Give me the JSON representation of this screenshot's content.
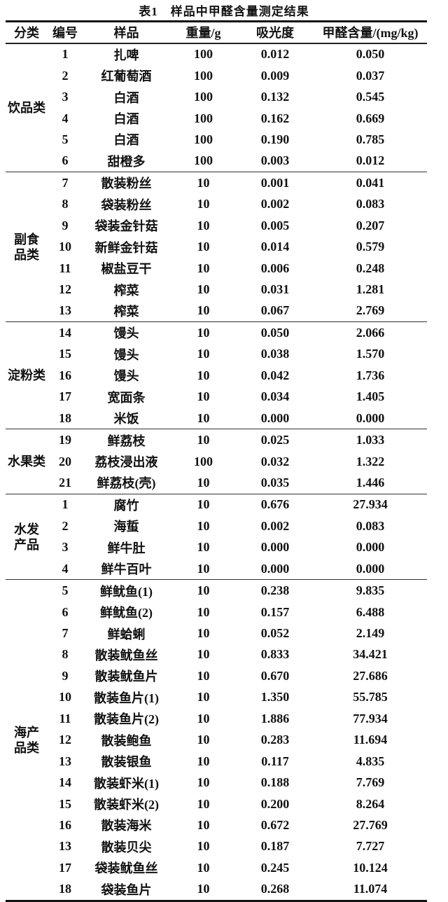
{
  "title": "表1　样品中甲醛含量测定结果",
  "headers": [
    "分类",
    "编号",
    "样品",
    "重量/g",
    "吸光度",
    "甲醛含量/(mg/kg)"
  ],
  "groups": [
    {
      "category": "饮品类",
      "rows": [
        [
          "1",
          "扎啤",
          "100",
          "0.012",
          "0.050"
        ],
        [
          "2",
          "红葡萄酒",
          "100",
          "0.009",
          "0.037"
        ],
        [
          "3",
          "白酒",
          "100",
          "0.132",
          "0.545"
        ],
        [
          "4",
          "白酒",
          "100",
          "0.162",
          "0.669"
        ],
        [
          "5",
          "白酒",
          "100",
          "0.190",
          "0.785"
        ],
        [
          "6",
          "甜橙多",
          "100",
          "0.003",
          "0.012"
        ]
      ]
    },
    {
      "category": "副食\n品类",
      "rows": [
        [
          "7",
          "散装粉丝",
          "10",
          "0.001",
          "0.041"
        ],
        [
          "8",
          "袋装粉丝",
          "10",
          "0.002",
          "0.083"
        ],
        [
          "9",
          "袋装金针菇",
          "10",
          "0.005",
          "0.207"
        ],
        [
          "10",
          "新鲜金针菇",
          "10",
          "0.014",
          "0.579"
        ],
        [
          "11",
          "椒盐豆干",
          "10",
          "0.006",
          "0.248"
        ],
        [
          "12",
          "榨菜",
          "10",
          "0.031",
          "1.281"
        ],
        [
          "13",
          "榨菜",
          "10",
          "0.067",
          "2.769"
        ]
      ]
    },
    {
      "category": "淀粉类",
      "rows": [
        [
          "14",
          "馒头",
          "10",
          "0.050",
          "2.066"
        ],
        [
          "15",
          "馒头",
          "10",
          "0.038",
          "1.570"
        ],
        [
          "16",
          "馒头",
          "10",
          "0.042",
          "1.736"
        ],
        [
          "17",
          "宽面条",
          "10",
          "0.034",
          "1.405"
        ],
        [
          "18",
          "米饭",
          "10",
          "0.000",
          "0.000"
        ]
      ]
    },
    {
      "category": "水果类",
      "rows": [
        [
          "19",
          "鲜荔枝",
          "10",
          "0.025",
          "1.033"
        ],
        [
          "20",
          "荔枝浸出液",
          "100",
          "0.032",
          "1.322"
        ],
        [
          "21",
          "鲜荔枝(壳)",
          "10",
          "0.035",
          "1.446"
        ]
      ]
    },
    {
      "category": "水发\n产品",
      "rows": [
        [
          "1",
          "腐竹",
          "10",
          "0.676",
          "27.934"
        ],
        [
          "2",
          "海蜇",
          "10",
          "0.002",
          "0.083"
        ],
        [
          "3",
          "鲜牛肚",
          "10",
          "0.000",
          "0.000"
        ],
        [
          "4",
          "鲜牛百叶",
          "10",
          "0.000",
          "0.000"
        ]
      ]
    },
    {
      "category": "海产\n品类",
      "rows": [
        [
          "5",
          "鲜鱿鱼(1)",
          "10",
          "0.238",
          "9.835"
        ],
        [
          "6",
          "鲜鱿鱼(2)",
          "10",
          "0.157",
          "6.488"
        ],
        [
          "7",
          "鲜蛤蜊",
          "10",
          "0.052",
          "2.149"
        ],
        [
          "8",
          "散装鱿鱼丝",
          "10",
          "0.833",
          "34.421"
        ],
        [
          "9",
          "散装鱿鱼片",
          "10",
          "0.670",
          "27.686"
        ],
        [
          "10",
          "散装鱼片(1)",
          "10",
          "1.350",
          "55.785"
        ],
        [
          "11",
          "散装鱼片(2)",
          "10",
          "1.886",
          "77.934"
        ],
        [
          "12",
          "散装鲍鱼",
          "10",
          "0.283",
          "11.694"
        ],
        [
          "13",
          "散装银鱼",
          "10",
          "0.117",
          "4.835"
        ],
        [
          "14",
          "散装虾米(1)",
          "10",
          "0.188",
          "7.769"
        ],
        [
          "15",
          "散装虾米(2)",
          "10",
          "0.200",
          "8.264"
        ],
        [
          "16",
          "散装海米",
          "10",
          "0.672",
          "27.769"
        ],
        [
          "13",
          "散装贝尖",
          "10",
          "0.187",
          "7.727"
        ],
        [
          "17",
          "袋装鱿鱼丝",
          "10",
          "0.245",
          "10.124"
        ],
        [
          "18",
          "袋装鱼片",
          "10",
          "0.268",
          "11.074"
        ]
      ]
    }
  ]
}
